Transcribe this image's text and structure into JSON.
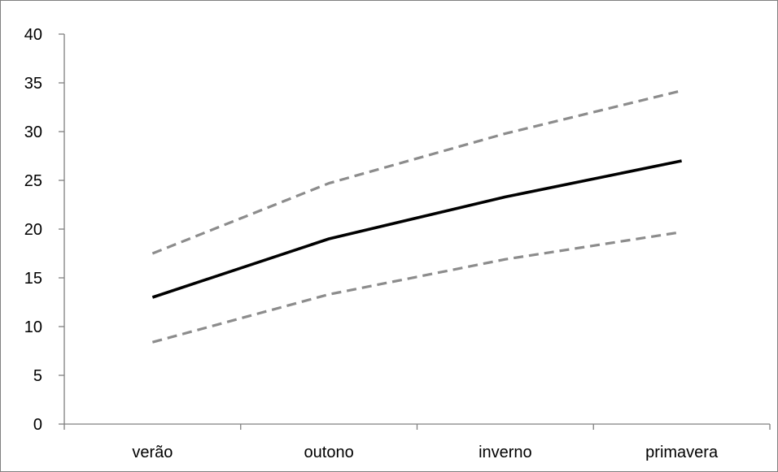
{
  "chart_data": {
    "type": "line",
    "title": "",
    "xlabel": "",
    "ylabel": "",
    "categories": [
      "verão",
      "outono",
      "inverno",
      "primavera"
    ],
    "yticks": [
      "0",
      "5",
      "10",
      "15",
      "20",
      "25",
      "30",
      "35",
      "40"
    ],
    "ylim": [
      0,
      40
    ],
    "grid": false,
    "legend": "none",
    "series": [
      {
        "style": "solid",
        "color": "#000000",
        "values": [
          13,
          19,
          23.3,
          27
        ]
      },
      {
        "style": "dashed",
        "color": "#8c8c8c",
        "values": [
          17.5,
          24.7,
          29.8,
          34.2
        ]
      },
      {
        "style": "dashed",
        "color": "#8c8c8c",
        "values": [
          8.4,
          13.3,
          16.9,
          19.7
        ]
      }
    ]
  }
}
